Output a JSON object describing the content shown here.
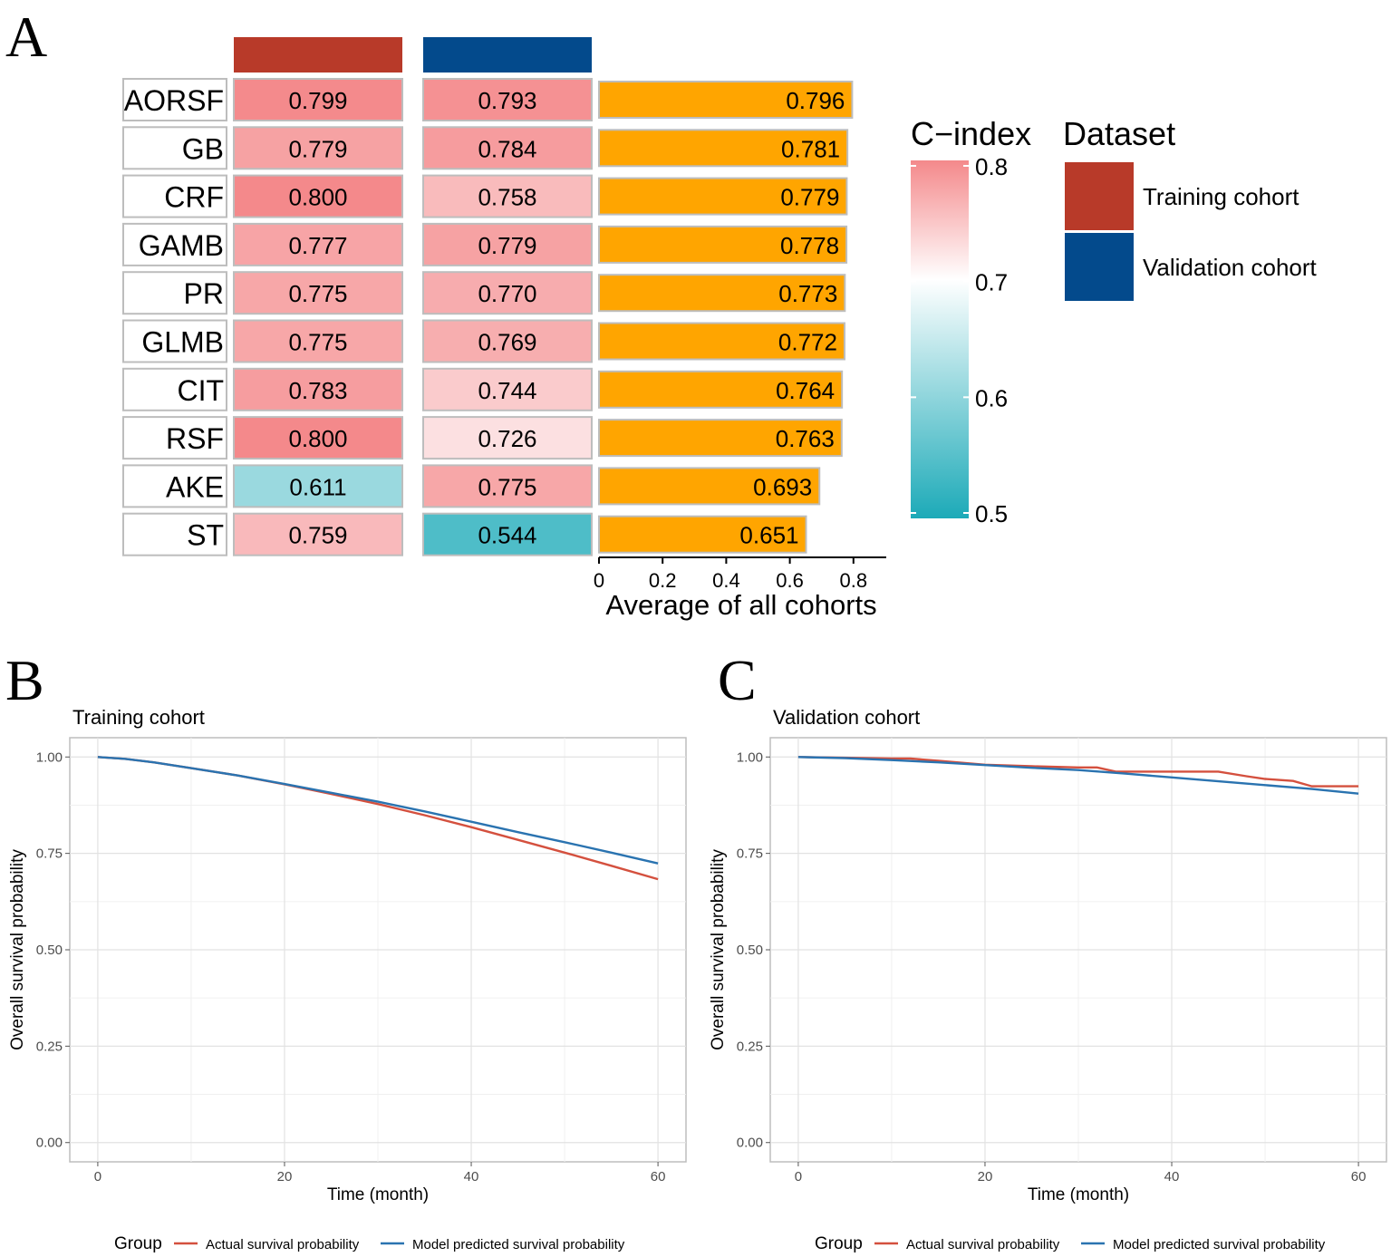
{
  "panel_labels": {
    "a": "A",
    "b": "B",
    "c": "C"
  },
  "colors": {
    "training": "#B83A29",
    "validation": "#034A8C",
    "avg_bar": "#FFA500",
    "scale_high": "#F4898B",
    "scale_mid": "#FFFFFF",
    "scale_low": "#1CAAB8",
    "actual_line": "#D4503E",
    "model_line": "#2A73B0"
  },
  "chart_data": [
    {
      "type": "heatmap",
      "id": "A",
      "models": [
        "AORSF",
        "GB",
        "CRF",
        "GAMB",
        "PR",
        "GLMB",
        "CIT",
        "RSF",
        "AKE",
        "ST"
      ],
      "columns": [
        "Training cohort",
        "Validation cohort"
      ],
      "values": [
        [
          0.799,
          0.793
        ],
        [
          0.779,
          0.784
        ],
        [
          0.8,
          0.758
        ],
        [
          0.777,
          0.779
        ],
        [
          0.775,
          0.77
        ],
        [
          0.775,
          0.769
        ],
        [
          0.783,
          0.744
        ],
        [
          0.8,
          0.726
        ],
        [
          0.611,
          0.775
        ],
        [
          0.759,
          0.544
        ]
      ],
      "value_labels": [
        [
          "0.799",
          "0.793"
        ],
        [
          "0.779",
          "0.784"
        ],
        [
          "0.800",
          "0.758"
        ],
        [
          "0.777",
          "0.779"
        ],
        [
          "0.775",
          "0.770"
        ],
        [
          "0.775",
          "0.769"
        ],
        [
          "0.783",
          "0.744"
        ],
        [
          "0.800",
          "0.726"
        ],
        [
          "0.611",
          "0.775"
        ],
        [
          "0.759",
          "0.544"
        ]
      ],
      "bar": {
        "type": "bar",
        "values": [
          0.796,
          0.781,
          0.779,
          0.778,
          0.773,
          0.772,
          0.764,
          0.763,
          0.693,
          0.651
        ],
        "value_labels": [
          "0.796",
          "0.781",
          "0.779",
          "0.778",
          "0.773",
          "0.772",
          "0.764",
          "0.763",
          "0.693",
          "0.651"
        ],
        "xlabel": "Average of all cohorts",
        "xlim": [
          0,
          0.9
        ],
        "ticks": [
          0,
          0.2,
          0.4,
          0.6,
          0.8
        ],
        "tick_labels": [
          "0",
          "0.2",
          "0.4",
          "0.6",
          "0.8"
        ]
      },
      "colorbar": {
        "title": "C−index",
        "range": [
          0.5,
          0.8
        ],
        "ticks": [
          0.8,
          0.7,
          0.6,
          0.5
        ],
        "tick_labels": [
          "0.8",
          "0.7",
          "0.6",
          "0.5"
        ]
      },
      "legend": {
        "title": "Dataset",
        "entries": [
          "Training cohort",
          "Validation cohort"
        ]
      }
    },
    {
      "type": "line",
      "id": "B",
      "title": "Training cohort",
      "xlabel": "Time (month)",
      "ylabel": "Overall survival probability",
      "xlim": [
        -3,
        63
      ],
      "ylim": [
        -0.05,
        1.05
      ],
      "xticks": [
        0,
        20,
        40,
        60
      ],
      "xtick_labels": [
        "0",
        "20",
        "40",
        "60"
      ],
      "yticks": [
        0,
        0.25,
        0.5,
        0.75,
        1
      ],
      "ytick_labels": [
        "0.00",
        "0.25",
        "0.50",
        "0.75",
        "1.00"
      ],
      "legend_title": "Group",
      "series": [
        {
          "name": "Actual survival probability",
          "x": [
            0,
            3,
            6,
            10,
            15,
            20,
            25,
            30,
            35,
            40,
            45,
            50,
            55,
            60
          ],
          "y": [
            1.0,
            0.995,
            0.986,
            0.971,
            0.952,
            0.929,
            0.904,
            0.878,
            0.849,
            0.818,
            0.785,
            0.752,
            0.718,
            0.683
          ]
        },
        {
          "name": "Model predicted survival probability",
          "x": [
            0,
            3,
            6,
            10,
            15,
            20,
            25,
            30,
            35,
            40,
            45,
            50,
            55,
            60
          ],
          "y": [
            1.0,
            0.995,
            0.986,
            0.971,
            0.952,
            0.93,
            0.907,
            0.884,
            0.859,
            0.832,
            0.805,
            0.779,
            0.752,
            0.724
          ]
        }
      ]
    },
    {
      "type": "line",
      "id": "C",
      "title": "Validation cohort",
      "xlabel": "Time (month)",
      "ylabel": "Overall survival probability",
      "xlim": [
        -3,
        63
      ],
      "ylim": [
        -0.05,
        1.05
      ],
      "xticks": [
        0,
        20,
        40,
        60
      ],
      "xtick_labels": [
        "0",
        "20",
        "40",
        "60"
      ],
      "yticks": [
        0,
        0.25,
        0.5,
        0.75,
        1
      ],
      "ytick_labels": [
        "0.00",
        "0.25",
        "0.50",
        "0.75",
        "1.00"
      ],
      "legend_title": "Group",
      "series": [
        {
          "name": "Actual survival probability",
          "x": [
            0,
            5,
            10,
            12,
            15,
            20,
            25,
            30,
            32,
            34,
            40,
            45,
            48,
            50,
            53,
            55,
            60
          ],
          "y": [
            1.0,
            0.998,
            0.996,
            0.996,
            0.99,
            0.98,
            0.976,
            0.973,
            0.973,
            0.962,
            0.962,
            0.962,
            0.95,
            0.943,
            0.938,
            0.924,
            0.924
          ]
        },
        {
          "name": "Model predicted survival probability",
          "x": [
            0,
            5,
            10,
            15,
            20,
            25,
            30,
            35,
            40,
            45,
            50,
            55,
            60
          ],
          "y": [
            1.0,
            0.997,
            0.992,
            0.986,
            0.979,
            0.972,
            0.966,
            0.957,
            0.947,
            0.937,
            0.927,
            0.917,
            0.905
          ]
        }
      ]
    }
  ]
}
